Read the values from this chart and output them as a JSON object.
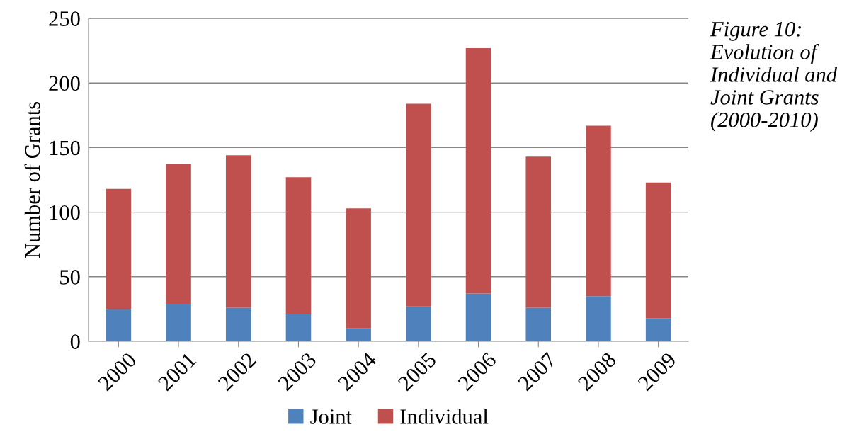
{
  "chart_data": {
    "type": "bar",
    "stacked": true,
    "ylabel": "Number of Grants",
    "categories": [
      "2000",
      "2001",
      "2002",
      "2003",
      "2004",
      "2005",
      "2006",
      "2007",
      "2008",
      "2009"
    ],
    "series": [
      {
        "name": "Joint",
        "color": "#4f81bd",
        "values": [
          25,
          29,
          26,
          21,
          10,
          27,
          37,
          26,
          35,
          18
        ]
      },
      {
        "name": "Individual",
        "color": "#c0504d",
        "values": [
          93,
          108,
          118,
          106,
          93,
          157,
          190,
          117,
          132,
          105
        ]
      }
    ],
    "ylim": [
      0,
      250
    ],
    "yticks": [
      0,
      50,
      100,
      150,
      200,
      250
    ],
    "grid": "y",
    "legend": "bottom",
    "annotations": [
      "Figure 10: Evolution of Individual and Joint Grants (2000-2010)"
    ]
  }
}
